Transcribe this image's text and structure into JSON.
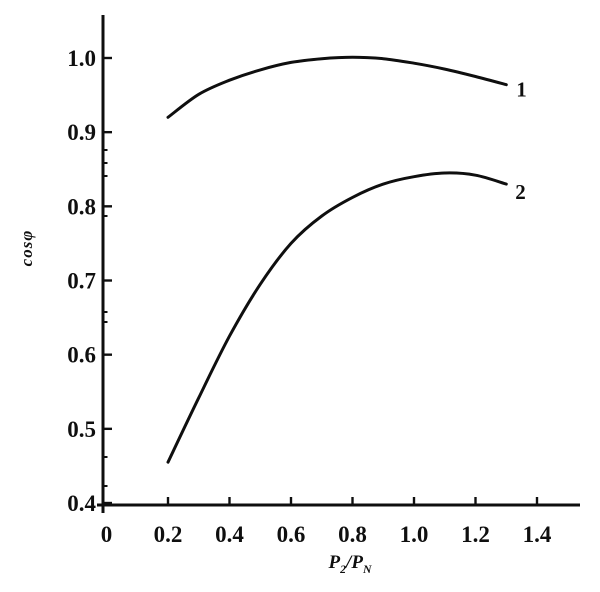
{
  "colors": {
    "ink": "#141414",
    "paper": "#ffffff"
  },
  "figure": {
    "y_axis_title": "cosφ",
    "x_axis_title": {
      "p_left": "P",
      "sub_left": "2",
      "slash": "/",
      "p_right": "P",
      "sub_right": "N"
    }
  },
  "chart_data": {
    "type": "line",
    "title": "",
    "xlabel": "P2/PN",
    "ylabel": "cosφ",
    "xlim": [
      0,
      1.45
    ],
    "ylim": [
      0.4,
      1.05
    ],
    "grid": false,
    "legend_position": "curve-end-labels",
    "x_tick_values": [
      0,
      0.2,
      0.4,
      0.6,
      0.8,
      1.0,
      1.2,
      1.4
    ],
    "x_tick_labels": [
      "0",
      "0.2",
      "0.4",
      "0.6",
      "0.8",
      "1.0",
      "1.2",
      "1.4"
    ],
    "y_tick_values": [
      0.4,
      0.5,
      0.6,
      0.7,
      0.8,
      0.9,
      1.0
    ],
    "y_tick_labels": [
      "0.4",
      "0.5",
      "0.6",
      "0.7",
      "0.8",
      "0.9",
      "1.0"
    ],
    "series": [
      {
        "name": "1",
        "label": "1",
        "x": [
          0.2,
          0.3,
          0.4,
          0.5,
          0.6,
          0.7,
          0.8,
          0.9,
          1.0,
          1.1,
          1.2,
          1.3
        ],
        "y": [
          0.92,
          0.951,
          0.97,
          0.984,
          0.994,
          0.999,
          1.001,
          0.999,
          0.993,
          0.985,
          0.975,
          0.964
        ]
      },
      {
        "name": "2",
        "label": "2",
        "x": [
          0.2,
          0.3,
          0.4,
          0.5,
          0.6,
          0.7,
          0.8,
          0.9,
          1.0,
          1.1,
          1.2,
          1.3
        ],
        "y": [
          0.455,
          0.542,
          0.625,
          0.695,
          0.75,
          0.787,
          0.812,
          0.83,
          0.84,
          0.845,
          0.842,
          0.83
        ]
      }
    ]
  }
}
